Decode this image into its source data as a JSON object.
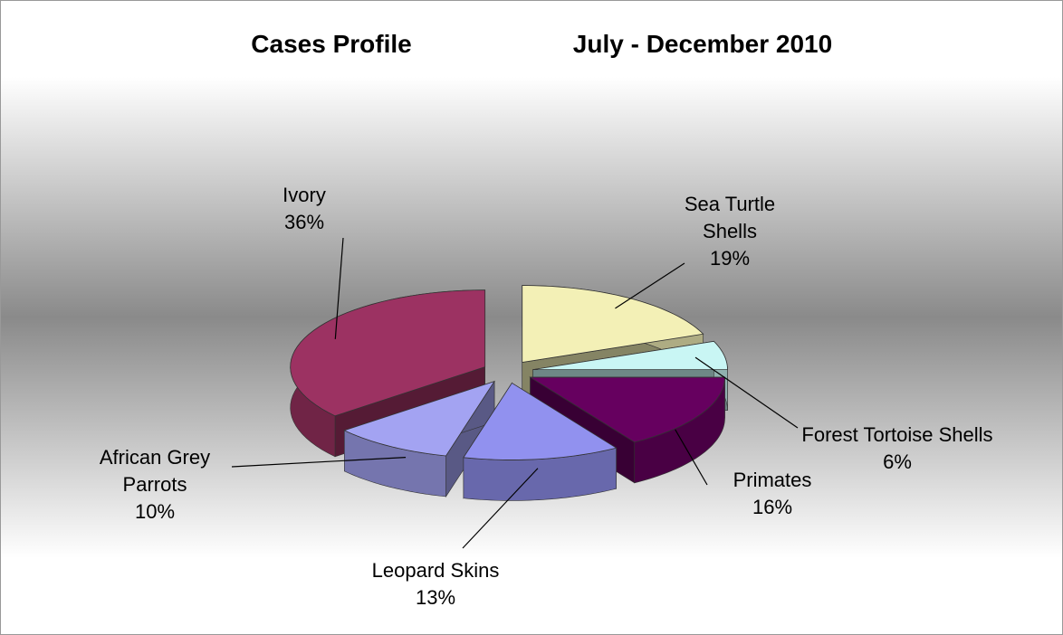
{
  "chart_data": {
    "type": "pie3d",
    "title": "Cases Profile",
    "subtitle": "July - December 2010",
    "categories": [
      "Sea Turtle Shells",
      "Forest Tortoise Shells",
      "Primates",
      "Leopard Skins",
      "African Grey Parrots",
      "Ivory"
    ],
    "values": [
      19,
      6,
      16,
      13,
      10,
      36
    ],
    "value_labels": [
      "19%",
      "6%",
      "16%",
      "13%",
      "10%",
      "36%"
    ],
    "colors": [
      "#f3f0b6",
      "#c9f6f4",
      "#66005f",
      "#9191ef",
      "#a3a3f2",
      "#9c3262"
    ]
  }
}
